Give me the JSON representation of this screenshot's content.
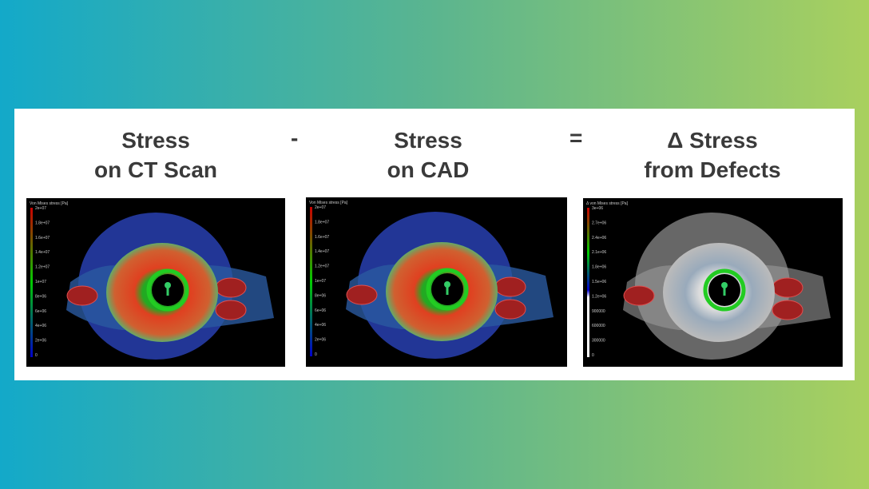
{
  "header": {
    "terms": [
      {
        "line1": "Stress",
        "line2": "on CT Scan"
      },
      {
        "line1": "Stress",
        "line2": "on CAD"
      },
      {
        "line1": "Δ Stress",
        "line2": "from Defects"
      }
    ],
    "operators": [
      "-",
      "="
    ]
  },
  "panels": [
    {
      "legend_title": "Von Mises stress [Pa]",
      "ticks": [
        "2e+07",
        "1.8e+07",
        "1.6e+07",
        "1.4e+07",
        "1.2e+07",
        "1e+07",
        "8e+06",
        "6e+06",
        "4e+06",
        "2e+06",
        "0"
      ]
    },
    {
      "legend_title": "Von Mises stress [Pa]",
      "ticks": [
        "2e+07",
        "1.8e+07",
        "1.6e+07",
        "1.4e+07",
        "1.2e+07",
        "1e+07",
        "8e+06",
        "6e+06",
        "4e+06",
        "2e+06",
        "0"
      ]
    },
    {
      "legend_title": "Δ von Mises stress [Pa]",
      "ticks": [
        "3e+06",
        "2.7e+06",
        "2.4e+06",
        "2.1e+06",
        "1.8e+06",
        "1.5e+06",
        "1.2e+06",
        "900000",
        "600000",
        "300000",
        "0"
      ]
    }
  ]
}
